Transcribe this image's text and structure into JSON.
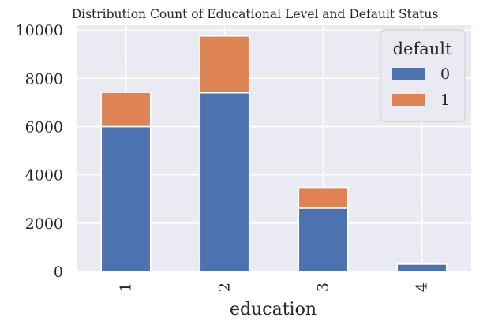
{
  "chart_data": {
    "type": "bar",
    "stacked": true,
    "title": "Distribution Count of Educational Level and Default Status",
    "xlabel": "education",
    "ylabel": "",
    "categories": [
      "1",
      "2",
      "3",
      "4"
    ],
    "series": [
      {
        "name": "0",
        "values": [
          6000,
          7400,
          2620,
          300
        ]
      },
      {
        "name": "1",
        "values": [
          1420,
          2350,
          860,
          10
        ]
      }
    ],
    "ylim": [
      0,
      10200
    ],
    "yticks": [
      0,
      2000,
      4000,
      6000,
      8000,
      10000
    ],
    "ytick_labels": [
      "0",
      "2000",
      "4000",
      "6000",
      "8000",
      "10000"
    ],
    "grid": true,
    "legend": {
      "title": "default",
      "placement": "top-right"
    },
    "colors": {
      "series_0": "#4c72b0",
      "series_1": "#dd8452",
      "plot_background": "#eaeaf2",
      "grid": "#ffffff"
    }
  }
}
